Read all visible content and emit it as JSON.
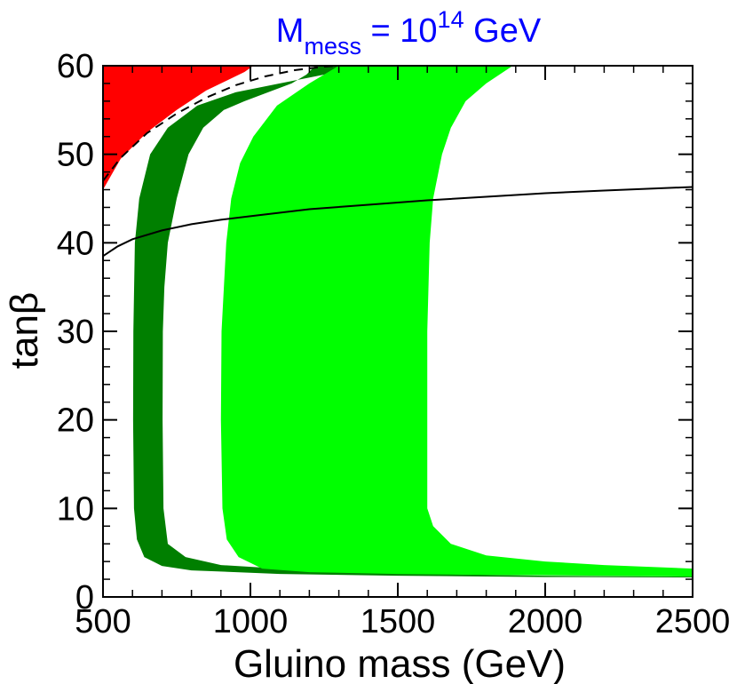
{
  "chart_data": {
    "type": "area",
    "title": {
      "main": "M",
      "subscript": "mess",
      "equals": " = 10",
      "superscript": "14",
      "unit": " GeV"
    },
    "xlabel": "Gluino mass  (GeV)",
    "ylabel": "tanβ",
    "xlim": [
      500,
      2500
    ],
    "ylim": [
      0,
      60
    ],
    "xticks": [
      500,
      1000,
      1500,
      2000,
      2500
    ],
    "xtick_labels": [
      "500",
      "1000",
      "1500",
      "2000",
      "2500"
    ],
    "yticks": [
      0,
      10,
      20,
      30,
      40,
      50,
      60
    ],
    "ytick_labels": [
      "0",
      "10",
      "20",
      "30",
      "40",
      "50",
      "60"
    ],
    "regions": [
      {
        "name": "excluded-region",
        "color": "#ff0000",
        "points": [
          [
            500,
            46
          ],
          [
            560,
            49.5
          ],
          [
            650,
            52.5
          ],
          [
            750,
            55
          ],
          [
            850,
            57.2
          ],
          [
            980,
            59.3
          ],
          [
            1010,
            60
          ],
          [
            500,
            60
          ]
        ]
      },
      {
        "name": "dark-green-band",
        "color": "#007f00",
        "points": [
          [
            1220,
            60
          ],
          [
            1190,
            59
          ],
          [
            1140,
            58
          ],
          [
            1060,
            57
          ],
          [
            980,
            56
          ],
          [
            910,
            55
          ],
          [
            840,
            53
          ],
          [
            790,
            50
          ],
          [
            750,
            45
          ],
          [
            720,
            40
          ],
          [
            708,
            35
          ],
          [
            703,
            30
          ],
          [
            702,
            20
          ],
          [
            705,
            10
          ],
          [
            720,
            6
          ],
          [
            780,
            4.5
          ],
          [
            900,
            3.6
          ],
          [
            1200,
            3
          ],
          [
            1600,
            2.6
          ],
          [
            2000,
            2.4
          ],
          [
            2500,
            2.3
          ],
          [
            2500,
            2.2
          ],
          [
            2000,
            2.25
          ],
          [
            1500,
            2.4
          ],
          [
            1100,
            2.6
          ],
          [
            800,
            3
          ],
          [
            700,
            3.5
          ],
          [
            640,
            4.5
          ],
          [
            615,
            6.5
          ],
          [
            605,
            10
          ],
          [
            602,
            20
          ],
          [
            603,
            30
          ],
          [
            608,
            40
          ],
          [
            623,
            45
          ],
          [
            660,
            50
          ],
          [
            720,
            53
          ],
          [
            820,
            55.5
          ],
          [
            950,
            57
          ],
          [
            1100,
            58
          ],
          [
            1250,
            59
          ],
          [
            1350,
            60
          ]
        ]
      },
      {
        "name": "light-green-band",
        "color": "#00ff00",
        "points": [
          [
            1890,
            60
          ],
          [
            1800,
            58
          ],
          [
            1730,
            56
          ],
          [
            1680,
            53
          ],
          [
            1650,
            50
          ],
          [
            1620,
            45
          ],
          [
            1608,
            40
          ],
          [
            1600,
            30
          ],
          [
            1600,
            20
          ],
          [
            1600,
            10
          ],
          [
            1620,
            8
          ],
          [
            1680,
            6
          ],
          [
            1800,
            4.7
          ],
          [
            2000,
            4
          ],
          [
            2200,
            3.6
          ],
          [
            2500,
            3.2
          ],
          [
            2500,
            2.3
          ],
          [
            2200,
            2.4
          ],
          [
            1800,
            2.5
          ],
          [
            1500,
            2.6
          ],
          [
            1200,
            2.8
          ],
          [
            1040,
            3.2
          ],
          [
            960,
            4.5
          ],
          [
            920,
            6.5
          ],
          [
            905,
            10
          ],
          [
            900,
            20
          ],
          [
            902,
            30
          ],
          [
            918,
            40
          ],
          [
            935,
            45
          ],
          [
            965,
            49
          ],
          [
            1010,
            52
          ],
          [
            1090,
            55.5
          ],
          [
            1200,
            58
          ],
          [
            1300,
            60
          ]
        ]
      }
    ],
    "series": [
      {
        "name": "solid-boundary-line",
        "style": "solid",
        "points": [
          [
            500,
            38.5
          ],
          [
            550,
            39.6
          ],
          [
            600,
            40.4
          ],
          [
            700,
            41.4
          ],
          [
            800,
            42.1
          ],
          [
            900,
            42.6
          ],
          [
            1000,
            43
          ],
          [
            1200,
            43.8
          ],
          [
            1400,
            44.3
          ],
          [
            1600,
            44.8
          ],
          [
            1800,
            45.2
          ],
          [
            2000,
            45.6
          ],
          [
            2200,
            45.9
          ],
          [
            2500,
            46.3
          ]
        ]
      },
      {
        "name": "dashed-boundary-line",
        "style": "dashed",
        "points": [
          [
            500,
            47
          ],
          [
            560,
            49.6
          ],
          [
            650,
            52.4
          ],
          [
            750,
            54.6
          ],
          [
            850,
            56.4
          ],
          [
            950,
            57.8
          ],
          [
            1050,
            58.8
          ],
          [
            1150,
            59.5
          ],
          [
            1250,
            59.9
          ],
          [
            1300,
            60
          ]
        ]
      }
    ]
  }
}
